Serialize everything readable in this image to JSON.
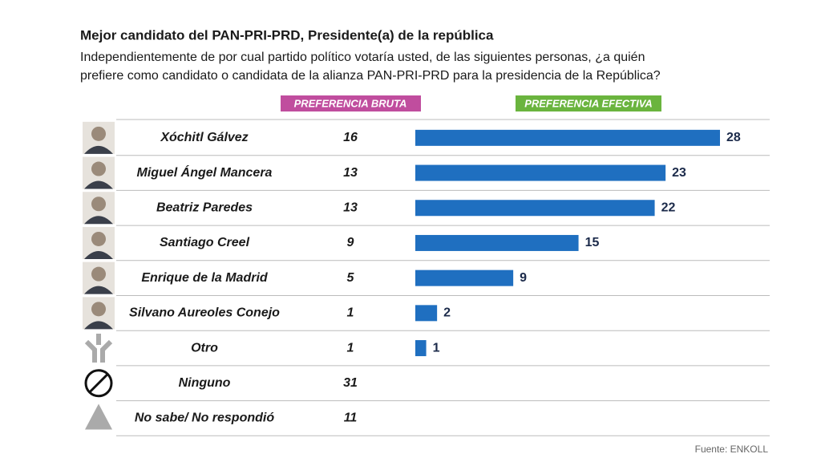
{
  "chart_data": {
    "type": "bar",
    "title": "Mejor candidato del PAN-PRI-PRD, Presidente(a) de la república",
    "subtitle": [
      "Independientemente de por cual partido político votaría usted, de las siguientes personas, ¿a quién",
      "prefiere como candidato o candidata de la alianza PAN-PRI-PRD para la presidencia de la República?"
    ],
    "categories": [
      "Xóchitl Gálvez",
      "Miguel Ángel Mancera",
      "Beatriz Paredes",
      "Santiago Creel",
      "Enrique de la Madrid",
      "Silvano Aureoles Conejo",
      "Otro",
      "Ninguno",
      "No sabe/ No respondió"
    ],
    "series": [
      {
        "name": "PREFERENCIA BRUTA",
        "color": "#c04d9e",
        "values": [
          16,
          13,
          13,
          9,
          5,
          1,
          1,
          31,
          11
        ]
      },
      {
        "name": "PREFERENCIA EFECTIVA",
        "color": "#6ab43e",
        "bar_color": "#1f6fc0",
        "values": [
          28,
          23,
          22,
          15,
          9,
          2,
          1,
          null,
          null
        ]
      }
    ],
    "source": "Fuente: ENKOLL"
  }
}
